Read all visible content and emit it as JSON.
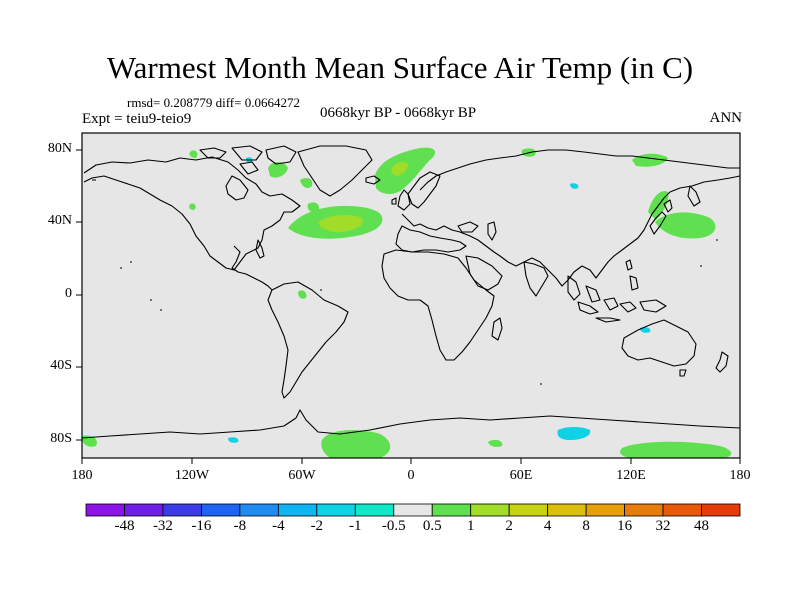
{
  "title": "Warmest Month Mean Surface Air Temp (in C)",
  "stats": "rmsd= 0.208779 diff= 0.0664272",
  "expt": "Expt = teiu9-teio9",
  "period": "0668kyr BP - 0668kyr BP",
  "season": "ANN",
  "map": {
    "projection": "cylindrical-equidistant",
    "background_color": "#e6e6e6",
    "lat_labels": [
      "80N",
      "40N",
      "0",
      "40S",
      "80S"
    ],
    "lon_labels": [
      "180",
      "120W",
      "60W",
      "0",
      "60E",
      "120E",
      "180"
    ]
  },
  "colorbar": {
    "colors": [
      "#8c14e6",
      "#6e1ee6",
      "#3c3ce6",
      "#1e64f0",
      "#1e8cf0",
      "#10b4f0",
      "#10d2e6",
      "#10e6c8",
      "#e6e6e6",
      "#60e050",
      "#a0dc28",
      "#c8d214",
      "#dcc010",
      "#e6a00a",
      "#e67c0a",
      "#e65a0a",
      "#e63c0a"
    ],
    "labels": [
      "-48",
      "-32",
      "-16",
      "-8",
      "-4",
      "-2",
      "-1",
      "-0.5",
      "0.5",
      "1",
      "2",
      "4",
      "8",
      "16",
      "32",
      "48"
    ]
  }
}
